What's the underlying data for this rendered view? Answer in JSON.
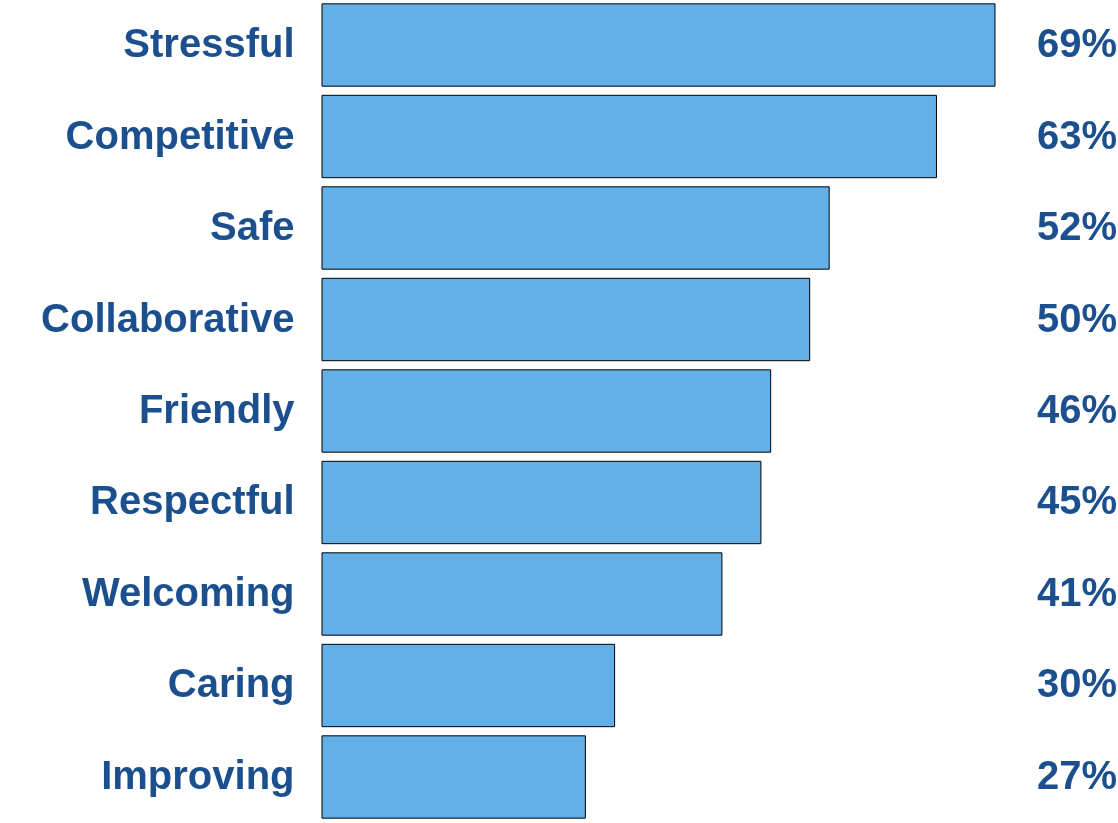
{
  "chart_data": {
    "type": "bar",
    "orientation": "horizontal",
    "categories": [
      "Stressful",
      "Competitive",
      "Safe",
      "Collaborative",
      "Friendly",
      "Respectful",
      "Welcoming",
      "Caring",
      "Improving"
    ],
    "values": [
      69,
      63,
      52,
      50,
      46,
      45,
      41,
      30,
      27
    ],
    "value_labels": [
      "69%",
      "63%",
      "52%",
      "50%",
      "46%",
      "45%",
      "41%",
      "30%",
      "27%"
    ],
    "color": "#63b0e8"
  }
}
